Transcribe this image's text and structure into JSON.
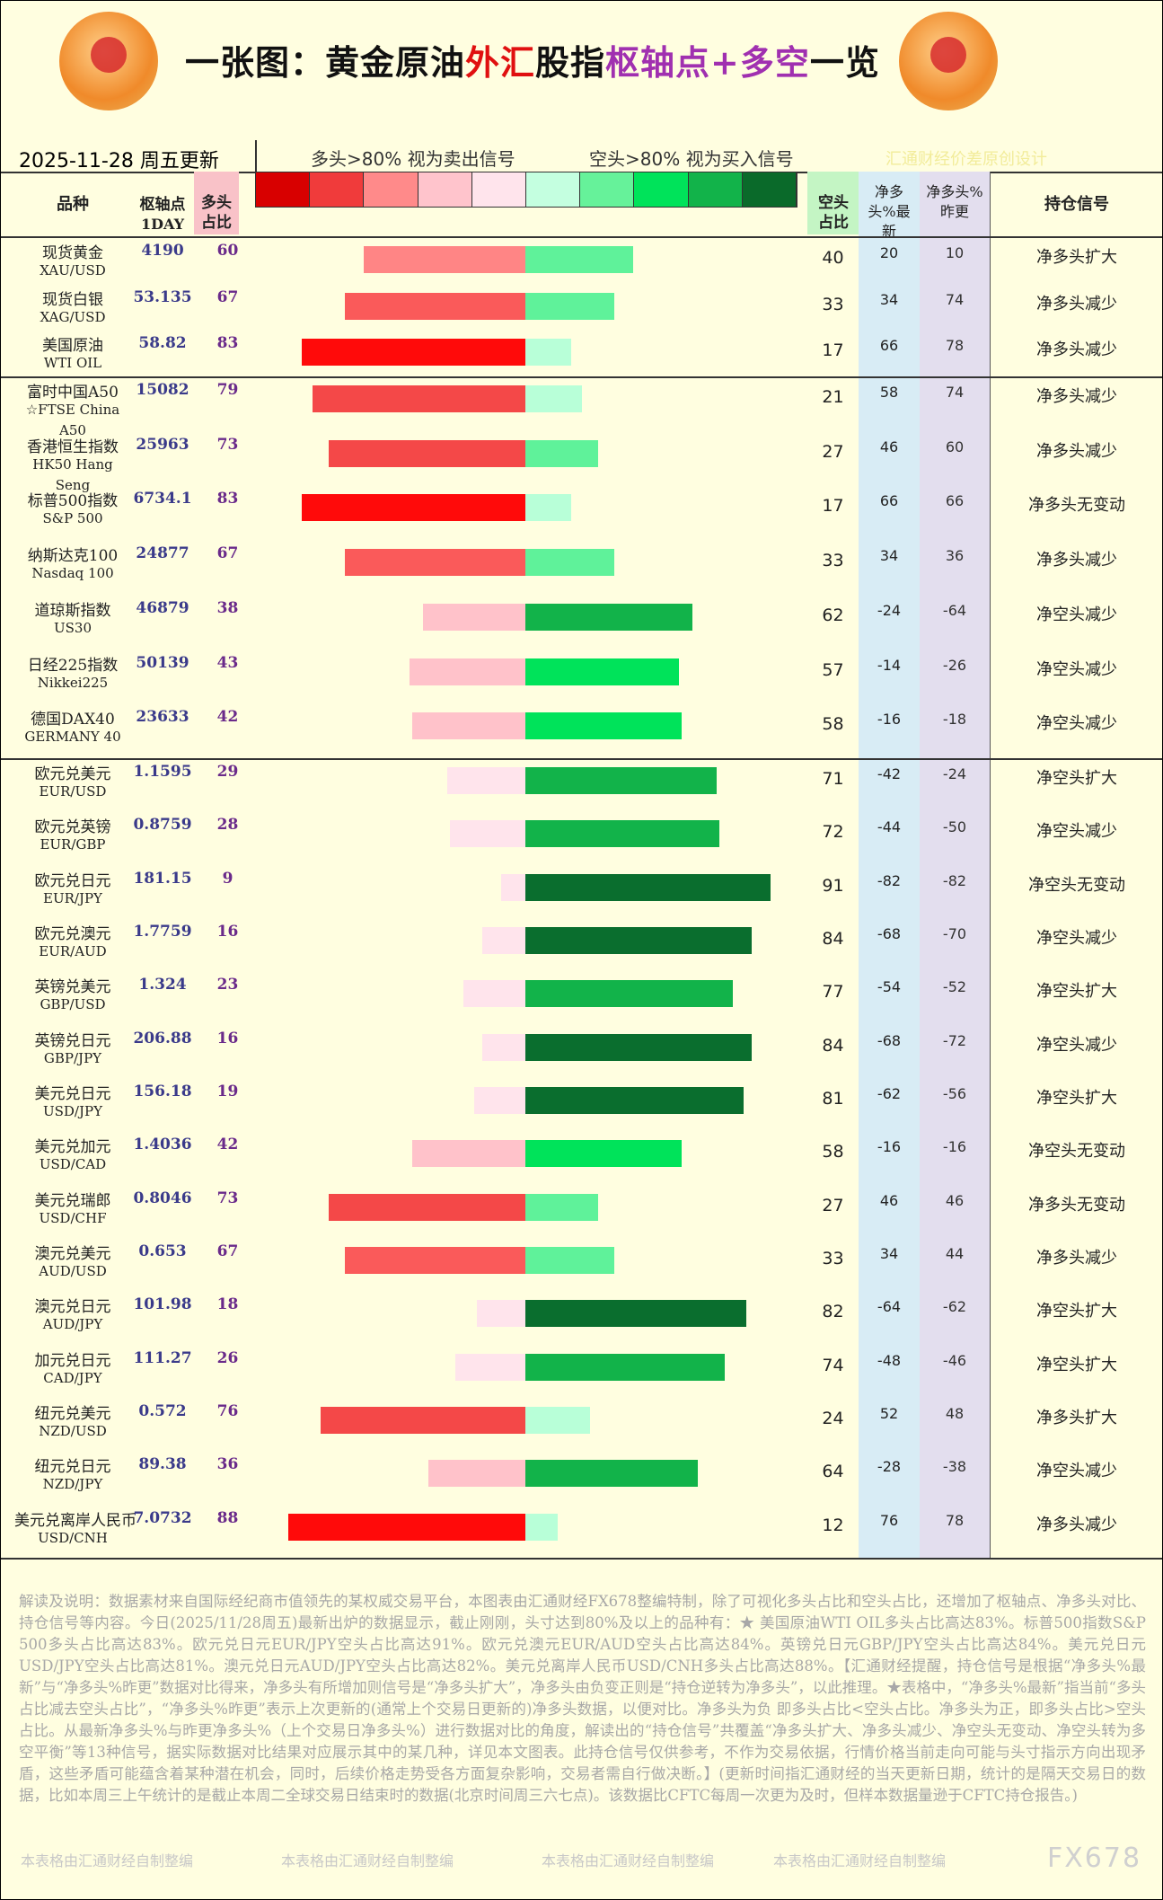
{
  "header": {
    "title_parts": [
      "一张图：黄金原油",
      "外汇",
      "股指",
      "枢轴点+多空",
      "一览"
    ],
    "date": "2025-11-28 周五更新",
    "long_note": "多头>80% 视为卖出信号",
    "short_note": "空头>80% 视为买入信号",
    "credit": "汇通财经价差原创设计"
  },
  "columns": {
    "name": "品种",
    "pivot": "枢轴点",
    "pivot_sub": "1DAY",
    "long": "多头占比",
    "short": "空头占比",
    "net_latest": "净多头%最新",
    "net_prev": "净多头%昨更",
    "signal": "持仓信号"
  },
  "groups": [
    {
      "rows": [
        {
          "name": "现货黄金",
          "code": "XAU/USD",
          "pivot": "4190",
          "long": 60,
          "short": 40,
          "net_latest": 20,
          "net_prev": 10,
          "signal": "净多头扩大"
        },
        {
          "name": "现货白银",
          "code": "XAG/USD",
          "pivot": "53.135",
          "long": 67,
          "short": 33,
          "net_latest": 34,
          "net_prev": 74,
          "signal": "净多头减少"
        },
        {
          "name": "美国原油",
          "code": "WTI OIL",
          "pivot": "58.82",
          "long": 83,
          "short": 17,
          "net_latest": 66,
          "net_prev": 78,
          "signal": "净多头减少"
        }
      ]
    },
    {
      "rows": [
        {
          "name": "富时中国A50",
          "code": "☆FTSE China A50",
          "pivot": "15082",
          "long": 79,
          "short": 21,
          "net_latest": 58,
          "net_prev": 74,
          "signal": "净多头减少"
        },
        {
          "name": "香港恒生指数",
          "code": "HK50 Hang Seng",
          "pivot": "25963",
          "long": 73,
          "short": 27,
          "net_latest": 46,
          "net_prev": 60,
          "signal": "净多头减少"
        },
        {
          "name": "标普500指数",
          "code": "S&P 500",
          "pivot": "6734.1",
          "long": 83,
          "short": 17,
          "net_latest": 66,
          "net_prev": 66,
          "signal": "净多头无变动"
        },
        {
          "name": "纳斯达克100",
          "code": "Nasdaq 100",
          "pivot": "24877",
          "long": 67,
          "short": 33,
          "net_latest": 34,
          "net_prev": 36,
          "signal": "净多头减少"
        },
        {
          "name": "道琼斯指数",
          "code": "US30",
          "pivot": "46879",
          "long": 38,
          "short": 62,
          "net_latest": -24,
          "net_prev": -64,
          "signal": "净空头减少"
        },
        {
          "name": "日经225指数",
          "code": "Nikkei225",
          "pivot": "50139",
          "long": 43,
          "short": 57,
          "net_latest": -14,
          "net_prev": -26,
          "signal": "净空头减少"
        },
        {
          "name": "德国DAX40",
          "code": "GERMANY 40",
          "pivot": "23633",
          "long": 42,
          "short": 58,
          "net_latest": -16,
          "net_prev": -18,
          "signal": "净空头减少"
        }
      ]
    },
    {
      "rows": [
        {
          "name": "欧元兑美元",
          "code": "EUR/USD",
          "pivot": "1.1595",
          "long": 29,
          "short": 71,
          "net_latest": -42,
          "net_prev": -24,
          "signal": "净空头扩大"
        },
        {
          "name": "欧元兑英镑",
          "code": "EUR/GBP",
          "pivot": "0.8759",
          "long": 28,
          "short": 72,
          "net_latest": -44,
          "net_prev": -50,
          "signal": "净空头减少"
        },
        {
          "name": "欧元兑日元",
          "code": "EUR/JPY",
          "pivot": "181.15",
          "long": 9,
          "short": 91,
          "net_latest": -82,
          "net_prev": -82,
          "signal": "净空头无变动"
        },
        {
          "name": "欧元兑澳元",
          "code": "EUR/AUD",
          "pivot": "1.7759",
          "long": 16,
          "short": 84,
          "net_latest": -68,
          "net_prev": -70,
          "signal": "净空头减少"
        },
        {
          "name": "英镑兑美元",
          "code": "GBP/USD",
          "pivot": "1.324",
          "long": 23,
          "short": 77,
          "net_latest": -54,
          "net_prev": -52,
          "signal": "净空头扩大"
        },
        {
          "name": "英镑兑日元",
          "code": "GBP/JPY",
          "pivot": "206.88",
          "long": 16,
          "short": 84,
          "net_latest": -68,
          "net_prev": -72,
          "signal": "净空头减少"
        },
        {
          "name": "美元兑日元",
          "code": "USD/JPY",
          "pivot": "156.18",
          "long": 19,
          "short": 81,
          "net_latest": -62,
          "net_prev": -56,
          "signal": "净空头扩大"
        },
        {
          "name": "美元兑加元",
          "code": "USD/CAD",
          "pivot": "1.4036",
          "long": 42,
          "short": 58,
          "net_latest": -16,
          "net_prev": -16,
          "signal": "净空头无变动"
        },
        {
          "name": "美元兑瑞郎",
          "code": "USD/CHF",
          "pivot": "0.8046",
          "long": 73,
          "short": 27,
          "net_latest": 46,
          "net_prev": 46,
          "signal": "净多头无变动"
        },
        {
          "name": "澳元兑美元",
          "code": "AUD/USD",
          "pivot": "0.653",
          "long": 67,
          "short": 33,
          "net_latest": 34,
          "net_prev": 44,
          "signal": "净多头减少"
        },
        {
          "name": "澳元兑日元",
          "code": "AUD/JPY",
          "pivot": "101.98",
          "long": 18,
          "short": 82,
          "net_latest": -64,
          "net_prev": -62,
          "signal": "净空头扩大"
        },
        {
          "name": "加元兑日元",
          "code": "CAD/JPY",
          "pivot": "111.27",
          "long": 26,
          "short": 74,
          "net_latest": -48,
          "net_prev": -46,
          "signal": "净空头扩大"
        },
        {
          "name": "纽元兑美元",
          "code": "NZD/USD",
          "pivot": "0.572",
          "long": 76,
          "short": 24,
          "net_latest": 52,
          "net_prev": 48,
          "signal": "净多头扩大"
        },
        {
          "name": "纽元兑日元",
          "code": "NZD/JPY",
          "pivot": "89.38",
          "long": 36,
          "short": 64,
          "net_latest": -28,
          "net_prev": -38,
          "signal": "净空头减少"
        },
        {
          "name": "美元兑离岸人民币",
          "code": "USD/CNH",
          "pivot": "7.0732",
          "long": 88,
          "short": 12,
          "net_latest": 76,
          "net_prev": 78,
          "signal": "净多头减少"
        }
      ]
    }
  ],
  "notes": "解读及说明：数据素材来自国际经纪商市值领先的某权威交易平台，本图表由汇通财经FX678整编特制，除了可视化多头占比和空头占比，还增加了枢轴点、净多头对比、持仓信号等内容。今日(2025/11/28周五)最新出炉的数据显示，截止刚刚，头寸达到80%及以上的品种有：★ 美国原油WTI OIL多头占比高达83%。标普500指数S&P 500多头占比高达83%。欧元兑日元EUR/JPY空头占比高达91%。欧元兑澳元EUR/AUD空头占比高达84%。英镑兑日元GBP/JPY空头占比高达84%。美元兑日元USD/JPY空头占比高达81%。澳元兑日元AUD/JPY空头占比高达82%。美元兑离岸人民币USD/CNH多头占比高达88%。【汇通财经提醒，持仓信号是根据“净多头%最新”与“净多头%昨更”数据对比得来，净多头有所增加则信号是“净多头扩大”，净多头由负变正则是“持仓逆转为净多头”，以此推理。★表格中，“净多头%最新”指当前“多头占比减去空头占比”，“净多头%昨更”表示上次更新的(通常上个交易日更新的)净多头数据，以便对比。净多头为负 即多头占比<空头占比。净多头为正，即多头占比>空头占比。从最新净多头%与昨更净多头%（上个交易日净多头%）进行数据对比的角度，解读出的“持仓信号”共覆盖“净多头扩大、净多头减少、净空头无变动、净空头转为多空平衡”等13种信号，据实际数据对比结果对应展示其中的某几种，详见本文图表。此持仓信号仅供参考，不作为交易依据，行情价格当前走向可能与头寸指示方向出现矛盾，这些矛盾可能蕴含着某种潜在机会，同时，后续价格走势受各方面复杂影响，交易者需自行做决断。】(更新时间指汇通财经的当天更新日期，统计的是隔天交易日的数据，比如本周三上午统计的是截止本周二全球交易日结束时的数据(北京时间周三六七点)。该数据比CFTC每周一次更为及时，但样本数据量逊于CFTC持仓报告。)",
  "footer": {
    "watermarks": [
      "本表格由汇通财经自制整编",
      "本表格由汇通财经自制整编",
      "本表格由汇通财经自制整编",
      "本表格由汇通财经自制整编"
    ],
    "logo": "FX678"
  }
}
